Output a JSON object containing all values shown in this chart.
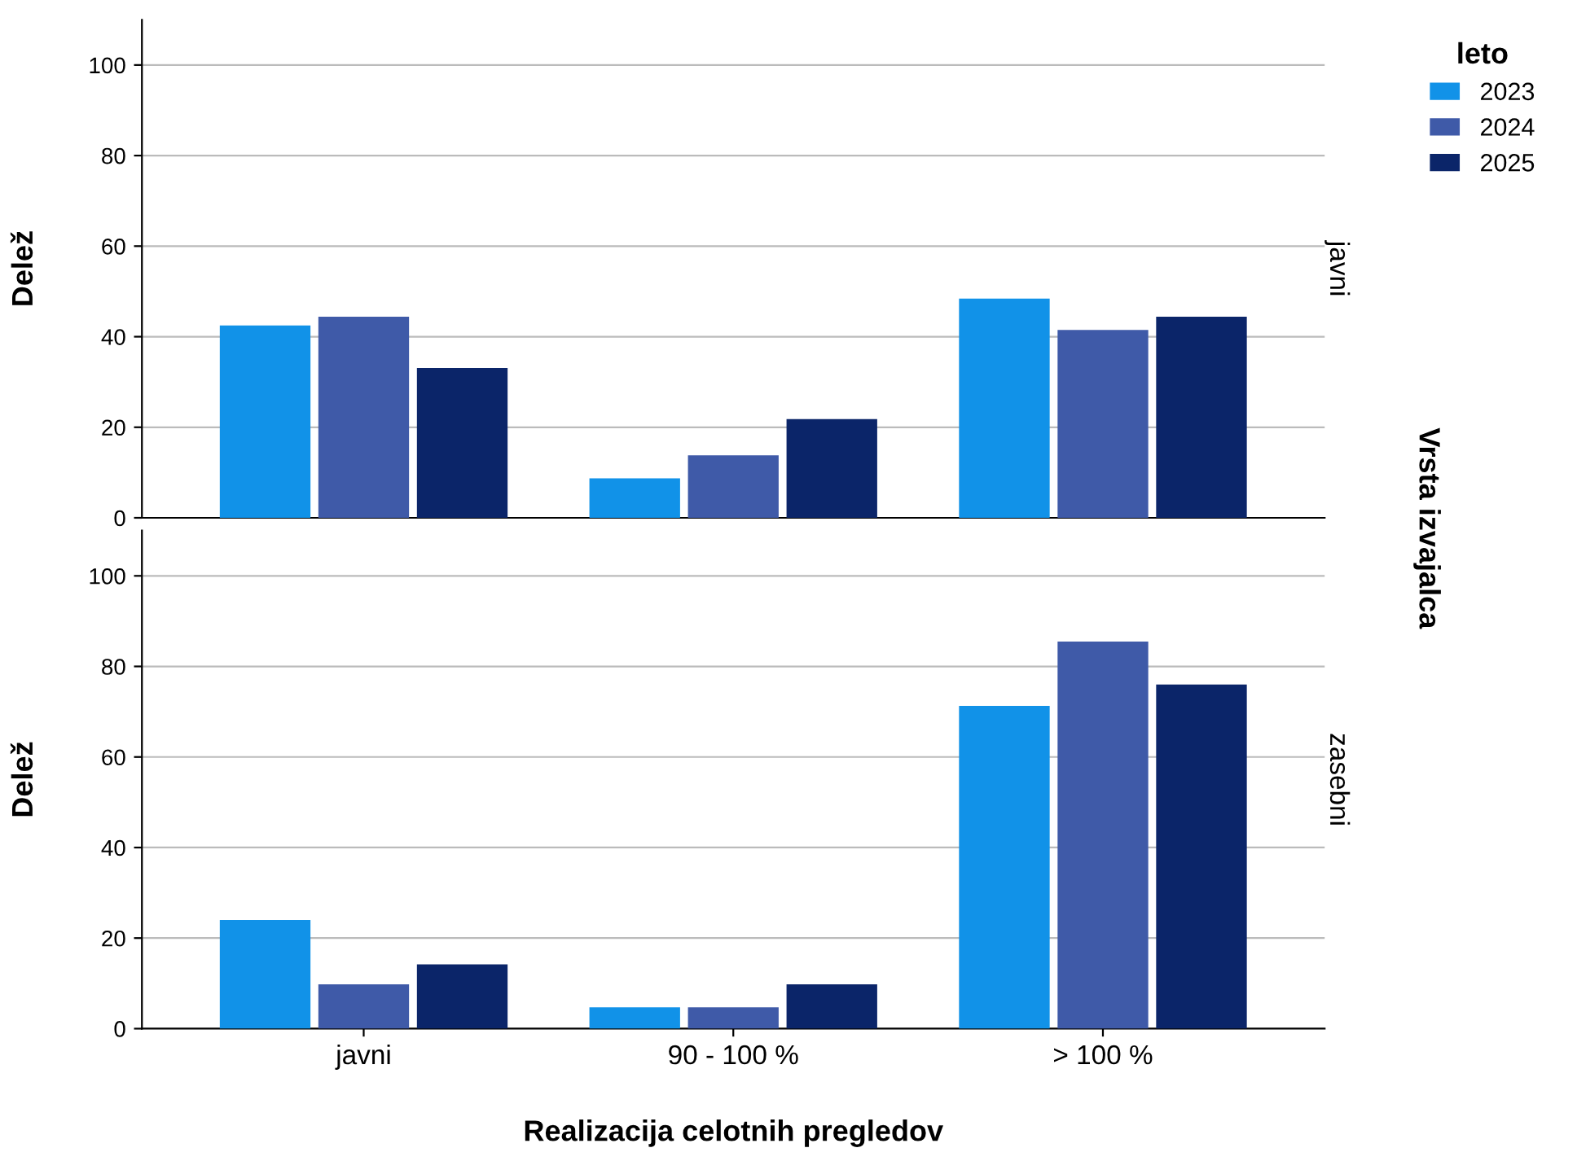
{
  "chart_data": [
    {
      "type": "bar",
      "categories": [
        null,
        null,
        null
      ],
      "ylabel": "Delež",
      "ylim": [
        0,
        110
      ],
      "yticks": [
        0,
        20,
        40,
        60,
        80,
        100
      ],
      "grid": "y",
      "legend": "top right",
      "legend_title": "leto",
      "tick_labels": "y",
      "annotations": [
        "javni",
        "Vrsta izvajalca"
      ],
      "series": [
        {
          "name": "2023",
          "color": "#1192e8",
          "values": [
            42.5,
            8.7,
            48.4
          ]
        },
        {
          "name": "2024",
          "color": "#3f5aa8",
          "values": [
            44.4,
            13.8,
            41.5
          ]
        },
        {
          "name": "2025",
          "color": "#0b2569",
          "values": [
            33.1,
            21.8,
            44.4
          ]
        }
      ]
    },
    {
      "type": "bar",
      "categories": [
        "javni",
        "90 - 100 %",
        "> 100 %"
      ],
      "ylabel": "Delež",
      "xlabel": "Realizacija celotnih pregledov",
      "ylim": [
        0,
        110
      ],
      "yticks": [
        0,
        20,
        40,
        60,
        80,
        100
      ],
      "grid": "y",
      "annotations": [
        "zasebni"
      ],
      "series": [
        {
          "color": "#1192e8",
          "values": [
            24.0,
            4.7,
            71.3
          ]
        },
        {
          "color": "#3f5aa8",
          "values": [
            9.8,
            4.7,
            85.5
          ]
        },
        {
          "color": "#0b2569",
          "values": [
            14.2,
            9.8,
            76.0
          ]
        }
      ]
    }
  ]
}
